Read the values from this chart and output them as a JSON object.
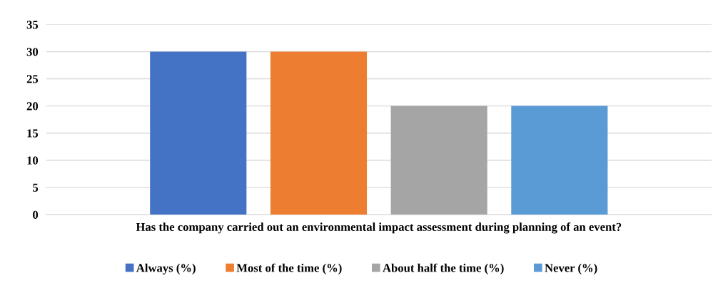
{
  "chart_data": {
    "type": "bar",
    "categories": [
      "Has the company carried out an environmental impact assessment during planning of an event?"
    ],
    "series": [
      {
        "name": "Always (%)",
        "color": "#4472c4",
        "values": [
          30
        ]
      },
      {
        "name": "Most of the time (%)",
        "color": "#ed7d31",
        "values": [
          30
        ]
      },
      {
        "name": "About half the time (%)",
        "color": "#a5a5a5",
        "values": [
          20
        ]
      },
      {
        "name": "Never (%)",
        "color": "#5b9bd5",
        "values": [
          20
        ]
      }
    ],
    "ylim": [
      0,
      35
    ],
    "yticks": [
      0,
      5,
      10,
      15,
      20,
      25,
      30,
      35
    ],
    "grid": "y",
    "legend": "bottom"
  }
}
